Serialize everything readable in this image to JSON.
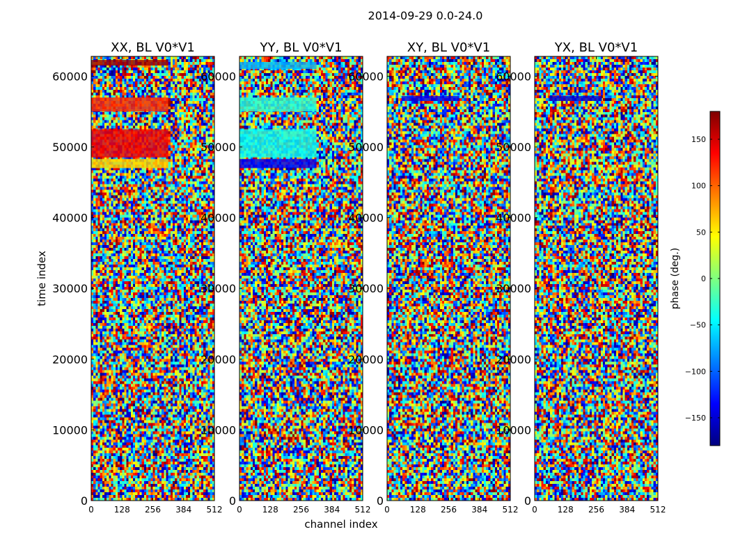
{
  "figure": {
    "suptitle": "2014-09-29 0.0-24.0",
    "xlabel": "channel index",
    "ylabel": "time index"
  },
  "colorbar": {
    "label": "phase (deg.)",
    "range": [
      -180,
      180
    ],
    "ticks": [
      150,
      100,
      50,
      0,
      -50,
      -100,
      -150
    ],
    "tick_labels": [
      "150",
      "100",
      "50",
      "0",
      "−50",
      "−100",
      "−150"
    ],
    "colors": [
      "#00007f",
      "#0000ff",
      "#007fff",
      "#00ffff",
      "#7fff7f",
      "#ffff00",
      "#ff7f00",
      "#ff0000",
      "#7f0000"
    ]
  },
  "chart_data": [
    {
      "type": "heatmap",
      "title": "XX, BL V0*V1",
      "x_ticks": [
        0,
        128,
        256,
        384,
        512
      ],
      "y_ticks": [
        0,
        10000,
        20000,
        30000,
        40000,
        50000,
        60000
      ],
      "xlim": [
        0,
        512
      ],
      "ylim": [
        0,
        62800
      ],
      "value_range": [
        -180,
        180
      ],
      "bands": [
        {
          "t": [
            48500,
            52500
          ],
          "ch": [
            0,
            320
          ],
          "phase": 140
        },
        {
          "t": [
            47000,
            48300
          ],
          "ch": [
            0,
            320
          ],
          "phase": 60
        },
        {
          "t": [
            55000,
            57000
          ],
          "ch": [
            0,
            320
          ],
          "phase": 120
        },
        {
          "t": [
            61500,
            62300
          ],
          "ch": [
            0,
            320
          ],
          "phase": 170
        }
      ]
    },
    {
      "type": "heatmap",
      "title": "YY, BL V0*V1",
      "x_ticks": [
        0,
        128,
        256,
        384,
        512
      ],
      "y_ticks": [
        0,
        10000,
        20000,
        30000,
        40000,
        50000,
        60000
      ],
      "xlim": [
        0,
        512
      ],
      "ylim": [
        0,
        62800
      ],
      "value_range": [
        -180,
        180
      ],
      "bands": [
        {
          "t": [
            48500,
            52500
          ],
          "ch": [
            0,
            320
          ],
          "phase": -40
        },
        {
          "t": [
            47000,
            48300
          ],
          "ch": [
            0,
            320
          ],
          "phase": -140
        },
        {
          "t": [
            55000,
            57000
          ],
          "ch": [
            0,
            320
          ],
          "phase": -30
        },
        {
          "t": [
            61000,
            62000
          ],
          "ch": [
            0,
            320
          ],
          "phase": -70
        }
      ]
    },
    {
      "type": "heatmap",
      "title": "XY, BL V0*V1",
      "x_ticks": [
        0,
        128,
        256,
        384,
        512
      ],
      "y_ticks": [
        0,
        10000,
        20000,
        30000,
        40000,
        50000,
        60000
      ],
      "xlim": [
        0,
        512
      ],
      "ylim": [
        0,
        62800
      ],
      "value_range": [
        -180,
        180
      ],
      "bands": [
        {
          "t": [
            56500,
            57200
          ],
          "ch": [
            60,
            300
          ],
          "phase": -140
        }
      ]
    },
    {
      "type": "heatmap",
      "title": "YX, BL V0*V1",
      "x_ticks": [
        0,
        128,
        256,
        384,
        512
      ],
      "y_ticks": [
        0,
        10000,
        20000,
        30000,
        40000,
        50000,
        60000
      ],
      "xlim": [
        0,
        512
      ],
      "ylim": [
        0,
        62800
      ],
      "value_range": [
        -180,
        180
      ],
      "bands": [
        {
          "t": [
            56500,
            57200
          ],
          "ch": [
            60,
            280
          ],
          "phase": -150
        }
      ]
    }
  ]
}
